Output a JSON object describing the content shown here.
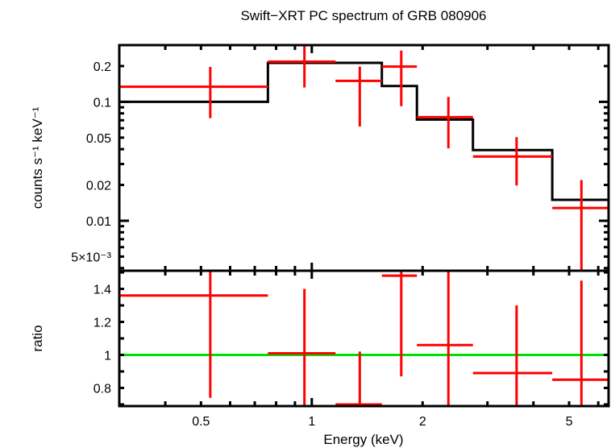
{
  "chart_data": [
    {
      "type": "line",
      "panel": "spectrum",
      "title": "Swift−XRT PC spectrum of GRB 080906",
      "ylabel": "counts s⁻¹ keV⁻¹",
      "xscale": "log",
      "yscale": "log",
      "xlim": [
        0.3,
        6.4
      ],
      "ylim": [
        0.0038,
        0.3
      ],
      "ytick_values": [
        0.2,
        0.1,
        0.05,
        0.02,
        0.01,
        0.005
      ],
      "ytick_labels": [
        "0.2",
        "0.1",
        "0.05",
        "0.02",
        "0.01",
        "5×10⁻³"
      ],
      "data_color": "#ff0000",
      "model_color": "#000000",
      "data": [
        {
          "xlo": 0.3,
          "xhi": 0.76,
          "x": 0.53,
          "y": 0.134,
          "ylo": 0.073,
          "yhi": 0.197
        },
        {
          "xlo": 0.76,
          "xhi": 1.16,
          "x": 0.955,
          "y": 0.218,
          "ylo": 0.132,
          "yhi": 0.32
        },
        {
          "xlo": 1.16,
          "xhi": 1.55,
          "x": 1.35,
          "y": 0.15,
          "ylo": 0.062,
          "yhi": 0.198
        },
        {
          "xlo": 1.55,
          "xhi": 1.93,
          "x": 1.75,
          "y": 0.198,
          "ylo": 0.092,
          "yhi": 0.27
        },
        {
          "xlo": 1.93,
          "xhi": 2.74,
          "x": 2.35,
          "y": 0.0744,
          "ylo": 0.0406,
          "yhi": 0.11
        },
        {
          "xlo": 2.74,
          "xhi": 4.5,
          "x": 3.6,
          "y": 0.0347,
          "ylo": 0.0198,
          "yhi": 0.0505
        },
        {
          "xlo": 4.5,
          "xhi": 6.4,
          "x": 5.4,
          "y": 0.0128,
          "ylo": 0.003,
          "yhi": 0.022
        }
      ],
      "model": [
        {
          "xlo": 0.3,
          "xhi": 0.76,
          "y": 0.1
        },
        {
          "xlo": 0.76,
          "xhi": 1.55,
          "y": 0.213
        },
        {
          "xlo": 1.55,
          "xhi": 1.93,
          "y": 0.136
        },
        {
          "xlo": 1.93,
          "xhi": 2.74,
          "y": 0.071
        },
        {
          "xlo": 2.74,
          "xhi": 4.5,
          "y": 0.0393
        },
        {
          "xlo": 4.5,
          "xhi": 6.4,
          "y": 0.015
        }
      ]
    },
    {
      "type": "line",
      "panel": "ratio",
      "xlabel": "Energy (keV)",
      "ylabel": "ratio",
      "xscale": "log",
      "yscale": "linear",
      "xlim": [
        0.3,
        6.4
      ],
      "ylim": [
        0.69,
        1.51
      ],
      "xtick_values": [
        0.5,
        1,
        2,
        5
      ],
      "xtick_labels": [
        "0.5",
        "1",
        "2",
        "5"
      ],
      "ytick_values": [
        1.4,
        1.2,
        1,
        0.8
      ],
      "ytick_labels": [
        "1.4",
        "1.2",
        "1",
        "0.8"
      ],
      "reference_line": 1,
      "reference_color": "#00e000",
      "data_color": "#ff0000",
      "data": [
        {
          "xlo": 0.3,
          "xhi": 0.76,
          "x": 0.53,
          "y": 1.36,
          "ylo": 0.74,
          "yhi": 1.6
        },
        {
          "xlo": 0.76,
          "xhi": 1.16,
          "x": 0.955,
          "y": 1.01,
          "ylo": 0.6,
          "yhi": 1.4
        },
        {
          "xlo": 1.16,
          "xhi": 1.55,
          "x": 1.35,
          "y": 0.7,
          "ylo": 0.6,
          "yhi": 1.02
        },
        {
          "xlo": 1.55,
          "xhi": 1.93,
          "x": 1.75,
          "y": 1.48,
          "ylo": 0.87,
          "yhi": 1.6
        },
        {
          "xlo": 1.93,
          "xhi": 2.74,
          "x": 2.35,
          "y": 1.06,
          "ylo": 0.6,
          "yhi": 1.6
        },
        {
          "xlo": 2.74,
          "xhi": 4.5,
          "x": 3.6,
          "y": 0.89,
          "ylo": 0.6,
          "yhi": 1.3
        },
        {
          "xlo": 4.5,
          "xhi": 6.4,
          "x": 5.4,
          "y": 0.85,
          "ylo": 0.6,
          "yhi": 1.45
        }
      ]
    }
  ]
}
